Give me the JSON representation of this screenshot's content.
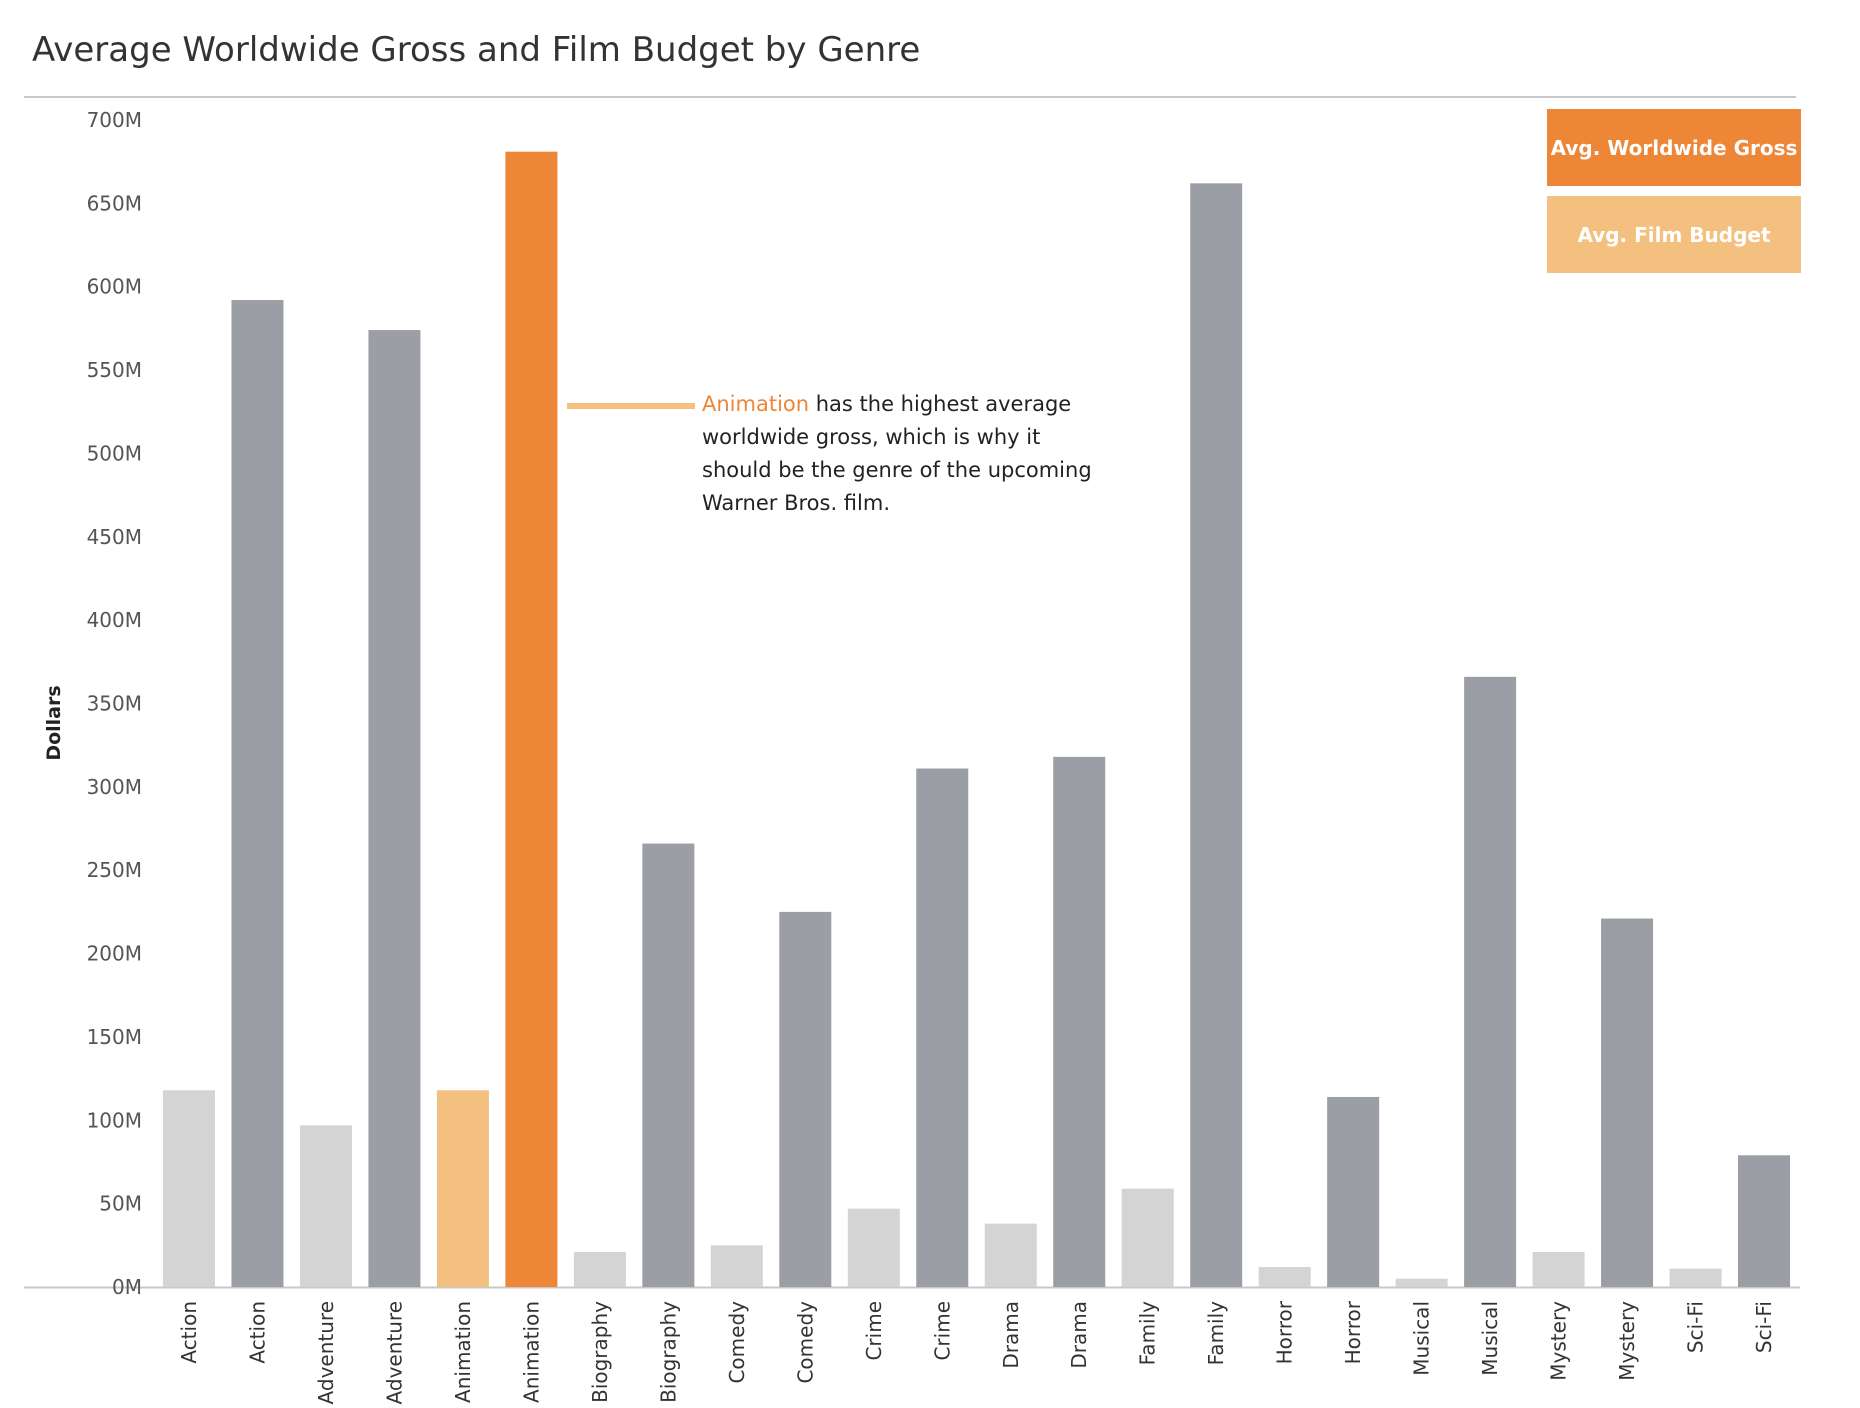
{
  "title": "Average Worldwide Gross and Film Budget by Genre",
  "colors": {
    "gross": "#9b9ea4",
    "budget": "#d4d4d4",
    "gross_highlight": "#ed8636",
    "budget_highlight": "#f4c080",
    "axis_text": "#555555",
    "legend_gross": "#ed8636",
    "legend_budget": "#f4c080"
  },
  "legend": {
    "gross_label": "Avg. Worldwide Gross",
    "budget_label": "Avg. Film Budget"
  },
  "annotation": {
    "highlight": "Animation",
    "text": " has the highest average worldwide gross, which is why it should be the genre of the upcoming Warner Bros. film."
  },
  "chart_data": {
    "type": "bar",
    "ylabel": "Dollars",
    "xlabel": "",
    "ylim": [
      0,
      700000000
    ],
    "yticks": [
      0,
      50000000,
      100000000,
      150000000,
      200000000,
      250000000,
      300000000,
      350000000,
      400000000,
      450000000,
      500000000,
      550000000,
      600000000,
      650000000,
      700000000
    ],
    "ytick_labels": [
      "0M",
      "50M",
      "100M",
      "150M",
      "200M",
      "250M",
      "300M",
      "350M",
      "400M",
      "450M",
      "500M",
      "550M",
      "600M",
      "650M",
      "700M"
    ],
    "highlight_genre": "Animation",
    "bars": [
      {
        "genre": "Action",
        "measure": "budget",
        "value": 118000000
      },
      {
        "genre": "Action",
        "measure": "gross",
        "value": 592000000
      },
      {
        "genre": "Adventure",
        "measure": "budget",
        "value": 97000000
      },
      {
        "genre": "Adventure",
        "measure": "gross",
        "value": 574000000
      },
      {
        "genre": "Animation",
        "measure": "budget",
        "value": 118000000
      },
      {
        "genre": "Animation",
        "measure": "gross",
        "value": 681000000
      },
      {
        "genre": "Biography",
        "measure": "budget",
        "value": 21000000
      },
      {
        "genre": "Biography",
        "measure": "gross",
        "value": 266000000
      },
      {
        "genre": "Comedy",
        "measure": "budget",
        "value": 25000000
      },
      {
        "genre": "Comedy",
        "measure": "gross",
        "value": 225000000
      },
      {
        "genre": "Crime",
        "measure": "budget",
        "value": 47000000
      },
      {
        "genre": "Crime",
        "measure": "gross",
        "value": 311000000
      },
      {
        "genre": "Drama",
        "measure": "budget",
        "value": 38000000
      },
      {
        "genre": "Drama",
        "measure": "gross",
        "value": 318000000
      },
      {
        "genre": "Family",
        "measure": "budget",
        "value": 59000000
      },
      {
        "genre": "Family",
        "measure": "gross",
        "value": 662000000
      },
      {
        "genre": "Horror",
        "measure": "budget",
        "value": 12000000
      },
      {
        "genre": "Horror",
        "measure": "gross",
        "value": 114000000
      },
      {
        "genre": "Musical",
        "measure": "budget",
        "value": 5000000
      },
      {
        "genre": "Musical",
        "measure": "gross",
        "value": 366000000
      },
      {
        "genre": "Mystery",
        "measure": "budget",
        "value": 21000000
      },
      {
        "genre": "Mystery",
        "measure": "gross",
        "value": 221000000
      },
      {
        "genre": "Sci-Fi",
        "measure": "budget",
        "value": 11000000
      },
      {
        "genre": "Sci-Fi",
        "measure": "gross",
        "value": 79000000
      }
    ]
  }
}
